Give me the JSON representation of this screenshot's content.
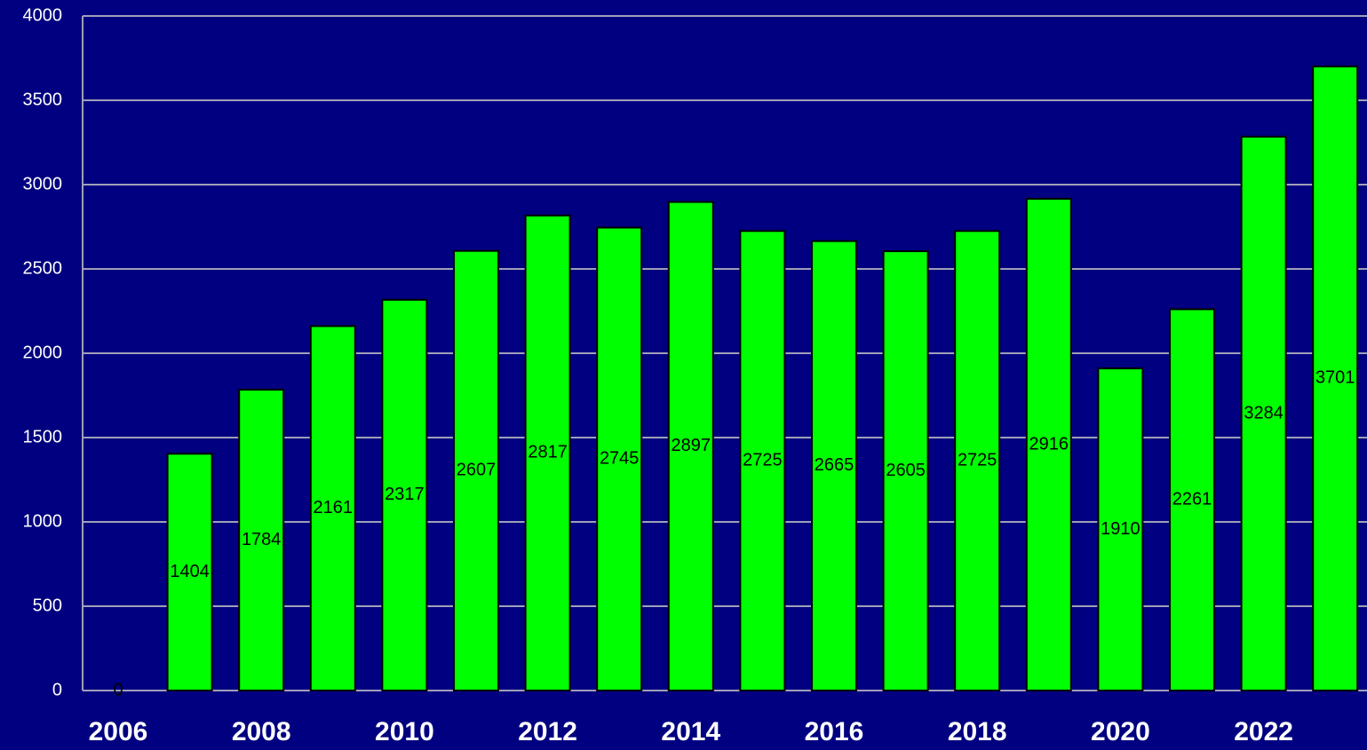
{
  "chart_data": {
    "type": "bar",
    "categories": [
      "2006",
      null,
      "2008",
      null,
      "2010",
      null,
      "2012",
      null,
      "2014",
      null,
      "2016",
      null,
      "2018",
      null,
      "2020",
      null,
      "2022",
      null
    ],
    "values": [
      0,
      1404,
      1784,
      2161,
      2317,
      2607,
      2817,
      2745,
      2897,
      2725,
      2665,
      2605,
      2725,
      2916,
      1910,
      2261,
      3284,
      3701
    ],
    "color": "#00ff00",
    "ylim": [
      0,
      4000
    ],
    "yticks": [
      0,
      500,
      1000,
      1500,
      2000,
      2500,
      3000,
      3500,
      4000
    ],
    "grid": true
  }
}
